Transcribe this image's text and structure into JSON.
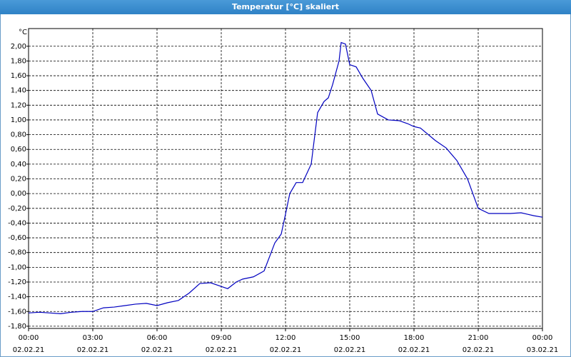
{
  "chart_data": {
    "type": "line",
    "title": "Temperatur [°C] skaliert",
    "y_label": "°C",
    "x": [
      0,
      0.5,
      1,
      1.5,
      2,
      2.5,
      3,
      3.5,
      4,
      4.5,
      5,
      5.5,
      6,
      6.5,
      7,
      7.5,
      8,
      8.5,
      9,
      9.3,
      9.7,
      10,
      10.5,
      11,
      11.5,
      11.8,
      12,
      12.2,
      12.5,
      12.8,
      13.2,
      13.5,
      13.8,
      14,
      14.2,
      14.5,
      14.6,
      14.8,
      15,
      15.3,
      15.6,
      16,
      16.3,
      16.8,
      17.3,
      17.7,
      18,
      18.3,
      19,
      19.5,
      20,
      20.5,
      21,
      21.5,
      22,
      22.5,
      23,
      23.3,
      23.6,
      24
    ],
    "series": [
      {
        "color": "#0000c0",
        "values": [
          -1.62,
          -1.61,
          -1.62,
          -1.63,
          -1.61,
          -1.6,
          -1.6,
          -1.55,
          -1.54,
          -1.52,
          -1.5,
          -1.49,
          -1.52,
          -1.48,
          -1.45,
          -1.35,
          -1.22,
          -1.21,
          -1.26,
          -1.29,
          -1.2,
          -1.16,
          -1.13,
          -1.05,
          -0.67,
          -0.55,
          -0.28,
          0.0,
          0.15,
          0.15,
          0.4,
          1.1,
          1.25,
          1.3,
          1.48,
          1.8,
          2.05,
          2.03,
          1.75,
          1.72,
          1.57,
          1.4,
          1.08,
          1.0,
          0.99,
          0.95,
          0.91,
          0.89,
          0.72,
          0.62,
          0.45,
          0.2,
          -0.2,
          -0.27,
          -0.27,
          -0.27,
          -0.26,
          -0.28,
          -0.3,
          -0.32
        ]
      }
    ],
    "xlim": [
      0,
      24
    ],
    "ylim": [
      -1.83,
      2.24
    ],
    "xticks": [
      {
        "value": 0,
        "label": "00:00"
      },
      {
        "value": 3,
        "label": "03:00"
      },
      {
        "value": 6,
        "label": "06:00"
      },
      {
        "value": 9,
        "label": "09:00"
      },
      {
        "value": 12,
        "label": "12:00"
      },
      {
        "value": 15,
        "label": "15:00"
      },
      {
        "value": 18,
        "label": "18:00"
      },
      {
        "value": 21,
        "label": "21:00"
      },
      {
        "value": 24,
        "label": "00:00"
      }
    ],
    "xtick_dates": [
      "02.02.21",
      "02.02.21",
      "02.02.21",
      "02.02.21",
      "02.02.21",
      "02.02.21",
      "02.02.21",
      "02.02.21",
      "03.02.21"
    ],
    "yticks": [
      {
        "value": 2.0,
        "label": "2,00"
      },
      {
        "value": 1.8,
        "label": "1,80"
      },
      {
        "value": 1.6,
        "label": "1,60"
      },
      {
        "value": 1.4,
        "label": "1,40"
      },
      {
        "value": 1.2,
        "label": "1,20"
      },
      {
        "value": 1.0,
        "label": "1,00"
      },
      {
        "value": 0.8,
        "label": "0,80"
      },
      {
        "value": 0.6,
        "label": "0,60"
      },
      {
        "value": 0.4,
        "label": "0,40"
      },
      {
        "value": 0.2,
        "label": "0,20"
      },
      {
        "value": 0.0,
        "label": "0,00"
      },
      {
        "value": -0.2,
        "label": "-0,20"
      },
      {
        "value": -0.4,
        "label": "-0,40"
      },
      {
        "value": -0.6,
        "label": "-0,60"
      },
      {
        "value": -0.8,
        "label": "-0,80"
      },
      {
        "value": -1.0,
        "label": "-1,00"
      },
      {
        "value": -1.2,
        "label": "-1,20"
      },
      {
        "value": -1.4,
        "label": "-1,40"
      },
      {
        "value": -1.6,
        "label": "-1,60"
      },
      {
        "value": -1.8,
        "label": "-1,80"
      }
    ],
    "grid": true
  }
}
